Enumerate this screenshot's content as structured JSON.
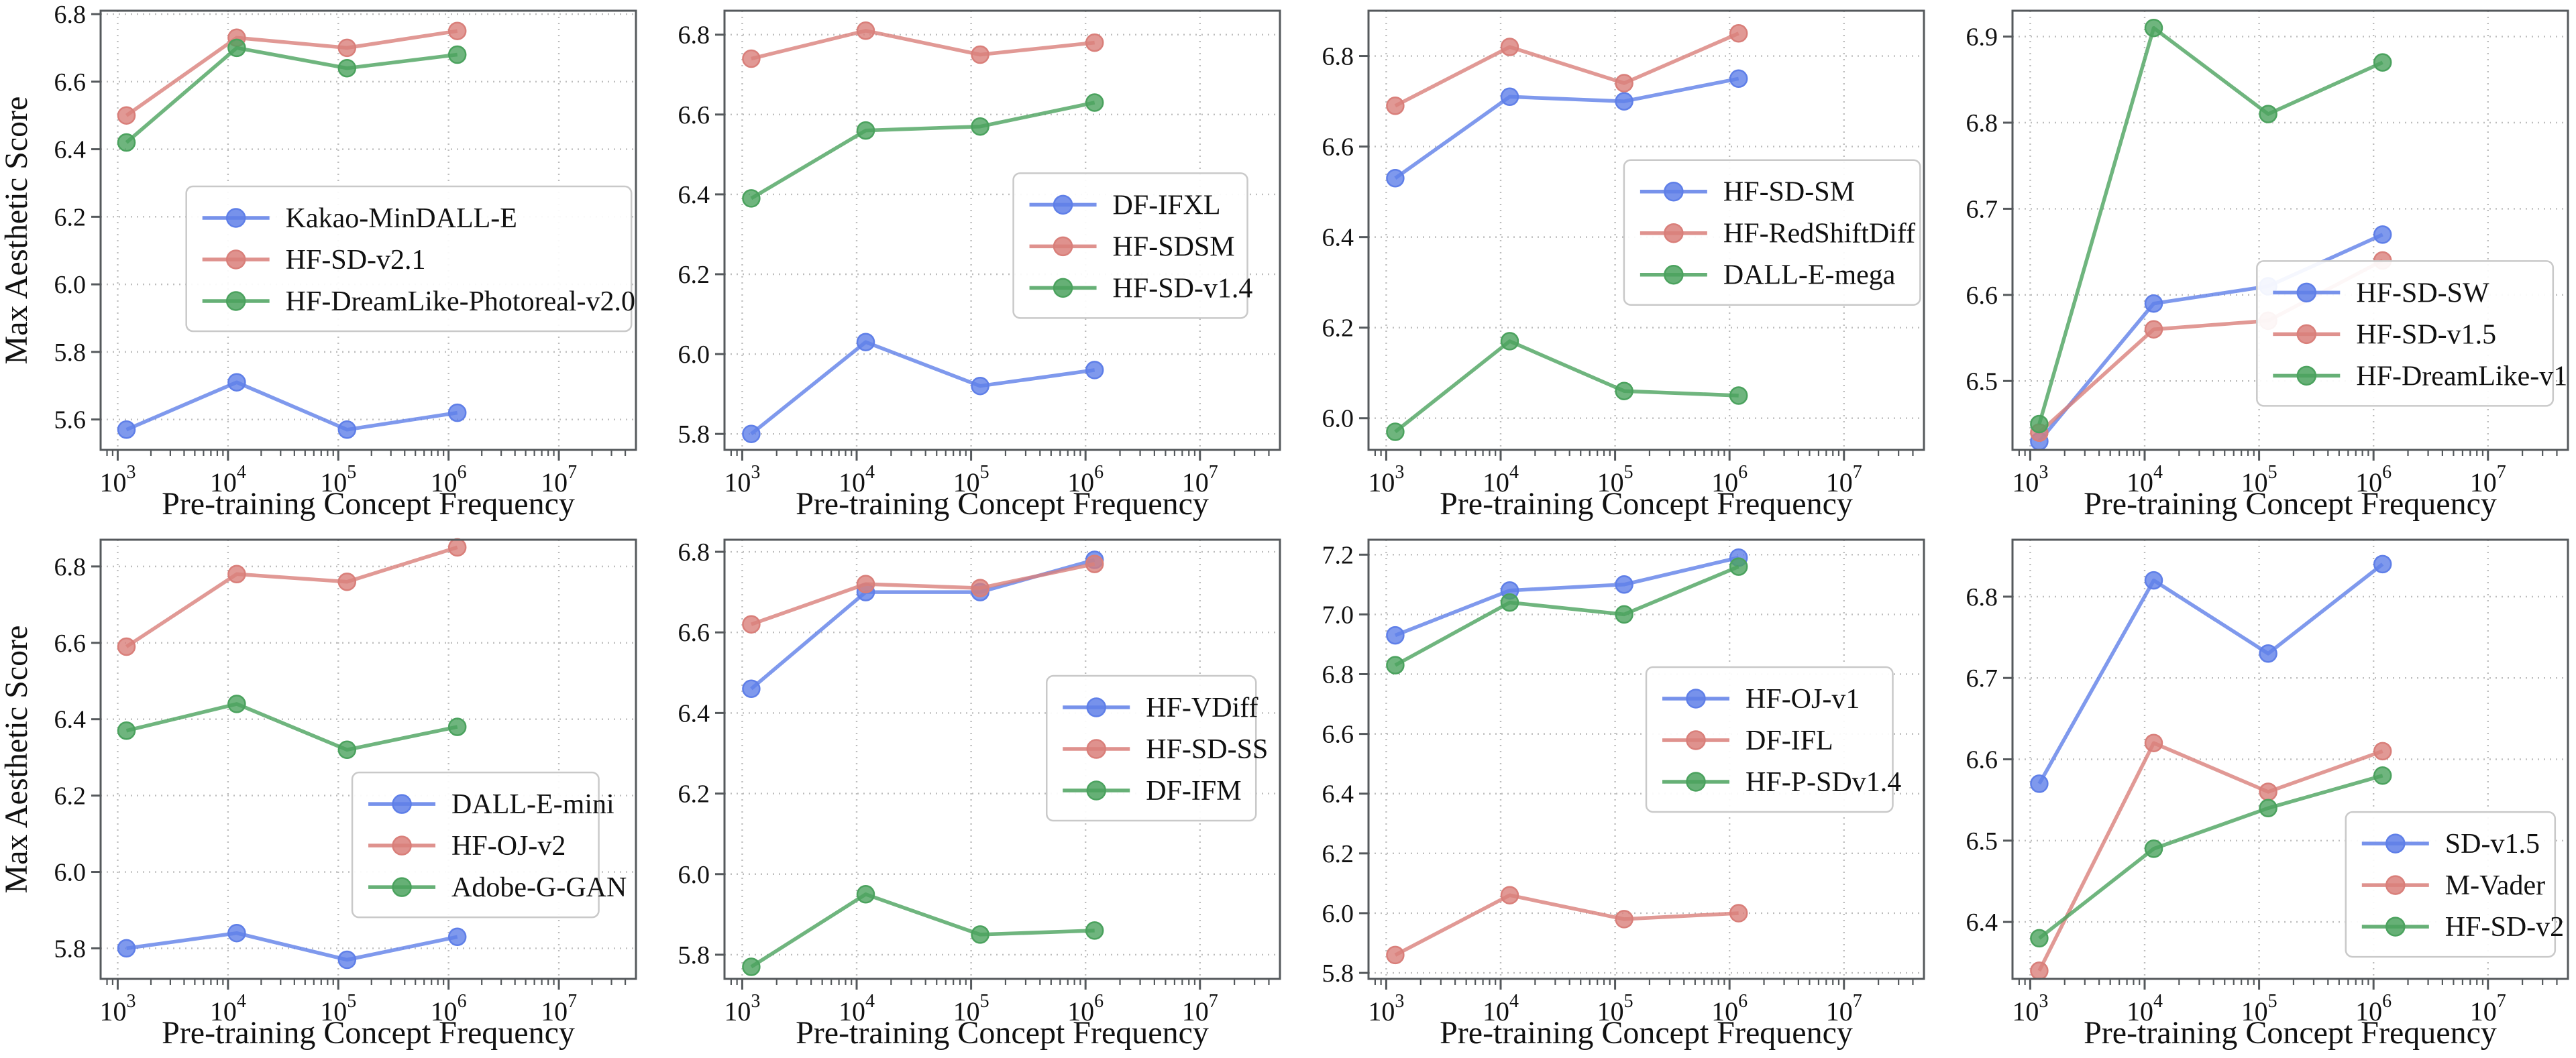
{
  "figure": {
    "layout": "2x4 grid of line subplots",
    "shared_xlabel": "Pre-training Concept Frequency",
    "shared_ylabel": "Max Aesthetic Score",
    "x_scale": "log",
    "x_tick_base": "10",
    "x_tick_exponents": [
      3,
      4,
      5,
      6,
      7
    ],
    "colors": {
      "blue": "#5f7fe8",
      "red": "#d97f7a",
      "green": "#4ba25e"
    },
    "axis_color": "#55595c",
    "grid_color": "#bdbdbd",
    "text_color": "#111111",
    "legend_background": "#ffffff",
    "legend_border": "#c9c9c9"
  },
  "chart_data": [
    {
      "type": "line",
      "position": "row1-col1",
      "xlabel": "Pre-training Concept Frequency",
      "ylabel": "Max Aesthetic Score",
      "show_ylabel": true,
      "x": [
        1000,
        10000,
        100000,
        1000000
      ],
      "xlim": [
        700,
        50000000
      ],
      "ylim": [
        5.51,
        6.81
      ],
      "yticks": [
        5.6,
        5.8,
        6.0,
        6.2,
        6.4,
        6.6,
        6.8
      ],
      "grid": true,
      "legend": {
        "position": "center",
        "fx": 0.16,
        "fy": 0.4
      },
      "series": [
        {
          "name": "Kakao-MinDALL-E",
          "color": "blue",
          "values": [
            5.57,
            5.71,
            5.57,
            5.62
          ]
        },
        {
          "name": "HF-SD-v2.1",
          "color": "red",
          "values": [
            6.5,
            6.73,
            6.7,
            6.75
          ]
        },
        {
          "name": "HF-DreamLike-Photoreal-v2.0",
          "color": "green",
          "values": [
            6.42,
            6.7,
            6.64,
            6.68
          ]
        }
      ]
    },
    {
      "type": "line",
      "position": "row1-col2",
      "xlabel": "Pre-training Concept Frequency",
      "ylabel": "Max Aesthetic Score",
      "show_ylabel": false,
      "x": [
        1000,
        10000,
        100000,
        1000000
      ],
      "xlim": [
        700,
        50000000
      ],
      "ylim": [
        5.76,
        6.86
      ],
      "yticks": [
        5.8,
        6.0,
        6.2,
        6.4,
        6.6,
        6.8
      ],
      "grid": true,
      "legend": {
        "position": "center-right",
        "fx": 0.52,
        "fy": 0.37
      },
      "series": [
        {
          "name": "DF-IFXL",
          "color": "blue",
          "values": [
            5.8,
            6.03,
            5.92,
            5.96
          ]
        },
        {
          "name": "HF-SDSM",
          "color": "red",
          "values": [
            6.74,
            6.81,
            6.75,
            6.78
          ]
        },
        {
          "name": "HF-SD-v1.4",
          "color": "green",
          "values": [
            6.39,
            6.56,
            6.57,
            6.63
          ]
        }
      ]
    },
    {
      "type": "line",
      "position": "row1-col3",
      "xlabel": "Pre-training Concept Frequency",
      "ylabel": "Max Aesthetic Score",
      "show_ylabel": false,
      "x": [
        1000,
        10000,
        100000,
        1000000
      ],
      "xlim": [
        700,
        50000000
      ],
      "ylim": [
        5.93,
        6.9
      ],
      "yticks": [
        6.0,
        6.2,
        6.4,
        6.6,
        6.8
      ],
      "grid": true,
      "legend": {
        "position": "center-right",
        "fx": 0.46,
        "fy": 0.34
      },
      "series": [
        {
          "name": "HF-SD-SM",
          "color": "blue",
          "values": [
            6.53,
            6.71,
            6.7,
            6.75
          ]
        },
        {
          "name": "HF-RedShiftDiff",
          "color": "red",
          "values": [
            6.69,
            6.82,
            6.74,
            6.85
          ]
        },
        {
          "name": "DALL-E-mega",
          "color": "green",
          "values": [
            5.97,
            6.17,
            6.06,
            6.05
          ]
        }
      ]
    },
    {
      "type": "line",
      "position": "row1-col4",
      "xlabel": "Pre-training Concept Frequency",
      "ylabel": "Max Aesthetic Score",
      "show_ylabel": false,
      "x": [
        1000,
        10000,
        100000,
        1000000
      ],
      "xlim": [
        700,
        50000000
      ],
      "ylim": [
        6.42,
        6.93
      ],
      "yticks": [
        6.5,
        6.6,
        6.7,
        6.8,
        6.9
      ],
      "grid": true,
      "legend": {
        "position": "right",
        "fx": 0.44,
        "fy": 0.57
      },
      "series": [
        {
          "name": "HF-SD-SW",
          "color": "blue",
          "values": [
            6.43,
            6.59,
            6.61,
            6.67
          ]
        },
        {
          "name": "HF-SD-v1.5",
          "color": "red",
          "values": [
            6.44,
            6.56,
            6.57,
            6.64
          ]
        },
        {
          "name": "HF-DreamLike-v1",
          "color": "green",
          "values": [
            6.45,
            6.91,
            6.81,
            6.87
          ]
        }
      ]
    },
    {
      "type": "line",
      "position": "row2-col1",
      "xlabel": "Pre-training Concept Frequency",
      "ylabel": "Max Aesthetic Score",
      "show_ylabel": true,
      "x": [
        1000,
        10000,
        100000,
        1000000
      ],
      "xlim": [
        700,
        50000000
      ],
      "ylim": [
        5.72,
        6.87
      ],
      "yticks": [
        5.8,
        6.0,
        6.2,
        6.4,
        6.6,
        6.8
      ],
      "grid": true,
      "legend": {
        "position": "center-right",
        "fx": 0.47,
        "fy": 0.53
      },
      "series": [
        {
          "name": "DALL-E-mini",
          "color": "blue",
          "values": [
            5.8,
            5.84,
            5.77,
            5.83
          ]
        },
        {
          "name": "HF-OJ-v2",
          "color": "red",
          "values": [
            6.59,
            6.78,
            6.76,
            6.85
          ]
        },
        {
          "name": "Adobe-G-GAN",
          "color": "green",
          "values": [
            6.37,
            6.44,
            6.32,
            6.38
          ]
        }
      ]
    },
    {
      "type": "line",
      "position": "row2-col2",
      "xlabel": "Pre-training Concept Frequency",
      "ylabel": "Max Aesthetic Score",
      "show_ylabel": false,
      "x": [
        1000,
        10000,
        100000,
        1000000
      ],
      "xlim": [
        700,
        50000000
      ],
      "ylim": [
        5.74,
        6.83
      ],
      "yticks": [
        5.8,
        6.0,
        6.2,
        6.4,
        6.6,
        6.8
      ],
      "grid": true,
      "legend": {
        "position": "center-right",
        "fx": 0.58,
        "fy": 0.31
      },
      "series": [
        {
          "name": "HF-VDiff",
          "color": "blue",
          "values": [
            6.46,
            6.7,
            6.7,
            6.78
          ]
        },
        {
          "name": "HF-SD-SS",
          "color": "red",
          "values": [
            6.62,
            6.72,
            6.71,
            6.77
          ]
        },
        {
          "name": "DF-IFM",
          "color": "green",
          "values": [
            5.77,
            5.95,
            5.85,
            5.86
          ]
        }
      ]
    },
    {
      "type": "line",
      "position": "row2-col3",
      "xlabel": "Pre-training Concept Frequency",
      "ylabel": "Max Aesthetic Score",
      "show_ylabel": false,
      "x": [
        1000,
        10000,
        100000,
        1000000
      ],
      "xlim": [
        700,
        50000000
      ],
      "ylim": [
        5.78,
        7.25
      ],
      "yticks": [
        5.8,
        6.0,
        6.2,
        6.4,
        6.6,
        6.8,
        7.0,
        7.2
      ],
      "grid": true,
      "legend": {
        "position": "center-right",
        "fx": 0.5,
        "fy": 0.29
      },
      "series": [
        {
          "name": "HF-OJ-v1",
          "color": "blue",
          "values": [
            6.93,
            7.08,
            7.1,
            7.19
          ]
        },
        {
          "name": "DF-IFL",
          "color": "red",
          "values": [
            5.86,
            6.06,
            5.98,
            6.0
          ]
        },
        {
          "name": "HF-P-SDv1.4",
          "color": "green",
          "values": [
            6.83,
            7.04,
            7.0,
            7.16
          ]
        }
      ]
    },
    {
      "type": "line",
      "position": "row2-col4",
      "xlabel": "Pre-training Concept Frequency",
      "ylabel": "Max Aesthetic Score",
      "show_ylabel": false,
      "x": [
        1000,
        10000,
        100000,
        1000000
      ],
      "xlim": [
        700,
        50000000
      ],
      "ylim": [
        6.33,
        6.87
      ],
      "yticks": [
        6.4,
        6.5,
        6.6,
        6.7,
        6.8
      ],
      "grid": true,
      "legend": {
        "position": "bottom-right",
        "fx": 0.6,
        "fy": 0.62
      },
      "series": [
        {
          "name": "SD-v1.5",
          "color": "blue",
          "values": [
            6.57,
            6.82,
            6.73,
            6.84
          ]
        },
        {
          "name": "M-Vader",
          "color": "red",
          "values": [
            6.34,
            6.62,
            6.56,
            6.61
          ]
        },
        {
          "name": "HF-SD-v2",
          "color": "green",
          "values": [
            6.38,
            6.49,
            6.54,
            6.58
          ]
        }
      ]
    }
  ],
  "layout_hints": {
    "point_x_offset_factor": 1.2,
    "marker": "circle",
    "line_width": 5.5,
    "grid_style": "dotted"
  }
}
